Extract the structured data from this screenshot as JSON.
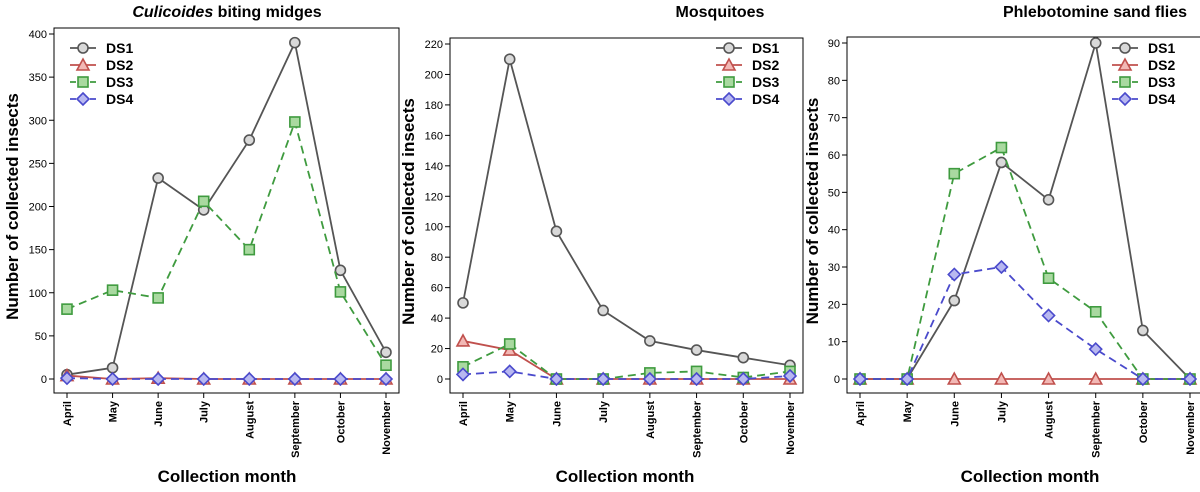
{
  "chart_data": [
    {
      "type": "line",
      "title_italic": "Culicoides",
      "title_rest": " biting midges",
      "xlabel": "Collection month",
      "ylabel": "Number of collected insects",
      "categories": [
        "April",
        "May",
        "June",
        "July",
        "August",
        "September",
        "October",
        "November"
      ],
      "ylim": [
        0,
        400
      ],
      "yticks": [
        0,
        50,
        100,
        150,
        200,
        250,
        300,
        350,
        400
      ],
      "legend_position": "top-left",
      "series": [
        {
          "name": "DS1",
          "values": [
            5,
            13,
            233,
            196,
            277,
            390,
            126,
            31
          ]
        },
        {
          "name": "DS2",
          "values": [
            4,
            0,
            1,
            0,
            0,
            0,
            0,
            0
          ]
        },
        {
          "name": "DS3",
          "values": [
            81,
            103,
            94,
            206,
            150,
            298,
            101,
            16
          ]
        },
        {
          "name": "DS4",
          "values": [
            1,
            0,
            0,
            0,
            0,
            0,
            0,
            0
          ]
        }
      ]
    },
    {
      "type": "line",
      "title_italic": "",
      "title_rest": "Mosquitoes",
      "xlabel": "Collection month",
      "ylabel": "Number of collected insects",
      "categories": [
        "April",
        "May",
        "June",
        "July",
        "August",
        "September",
        "October",
        "November"
      ],
      "ylim": [
        0,
        220
      ],
      "yticks": [
        0,
        20,
        40,
        60,
        80,
        100,
        120,
        140,
        160,
        180,
        200,
        220
      ],
      "legend_position": "top-right",
      "series": [
        {
          "name": "DS1",
          "values": [
            50,
            210,
            97,
            45,
            25,
            19,
            14,
            9
          ]
        },
        {
          "name": "DS2",
          "values": [
            25,
            19,
            0,
            0,
            0,
            0,
            0,
            0
          ]
        },
        {
          "name": "DS3",
          "values": [
            8,
            23,
            0,
            0,
            4,
            5,
            1,
            5
          ]
        },
        {
          "name": "DS4",
          "values": [
            3,
            5,
            0,
            0,
            0,
            0,
            0,
            2
          ]
        }
      ]
    },
    {
      "type": "line",
      "title_italic": "",
      "title_rest": "Phlebotomine sand flies",
      "xlabel": "Collection month",
      "ylabel": "Number of collected insects",
      "categories": [
        "April",
        "May",
        "June",
        "July",
        "August",
        "September",
        "October",
        "November"
      ],
      "ylim": [
        0,
        90
      ],
      "yticks": [
        0,
        10,
        20,
        30,
        40,
        50,
        60,
        70,
        80,
        90
      ],
      "legend_position": "top-right",
      "series": [
        {
          "name": "DS1",
          "values": [
            0,
            0,
            21,
            58,
            48,
            90,
            13,
            0
          ]
        },
        {
          "name": "DS2",
          "values": [
            0,
            0,
            0,
            0,
            0,
            0,
            0,
            0
          ]
        },
        {
          "name": "DS3",
          "values": [
            0,
            0,
            55,
            62,
            27,
            18,
            0,
            0
          ]
        },
        {
          "name": "DS4",
          "values": [
            0,
            0,
            28,
            30,
            17,
            8,
            0,
            0
          ]
        }
      ]
    }
  ],
  "series_styles": [
    {
      "name": "DS1",
      "color": "#555555",
      "fill": "#d9d9d9",
      "marker": "circle",
      "dash": "solid"
    },
    {
      "name": "DS2",
      "color": "#c0504d",
      "fill": "#f2b8b5",
      "marker": "triangle",
      "dash": "solid"
    },
    {
      "name": "DS3",
      "color": "#3f9b3f",
      "fill": "#a9d9a0",
      "marker": "square",
      "dash": "dashed"
    },
    {
      "name": "DS4",
      "color": "#4a4acc",
      "fill": "#b8b8f0",
      "marker": "diamond",
      "dash": "dashed"
    }
  ]
}
